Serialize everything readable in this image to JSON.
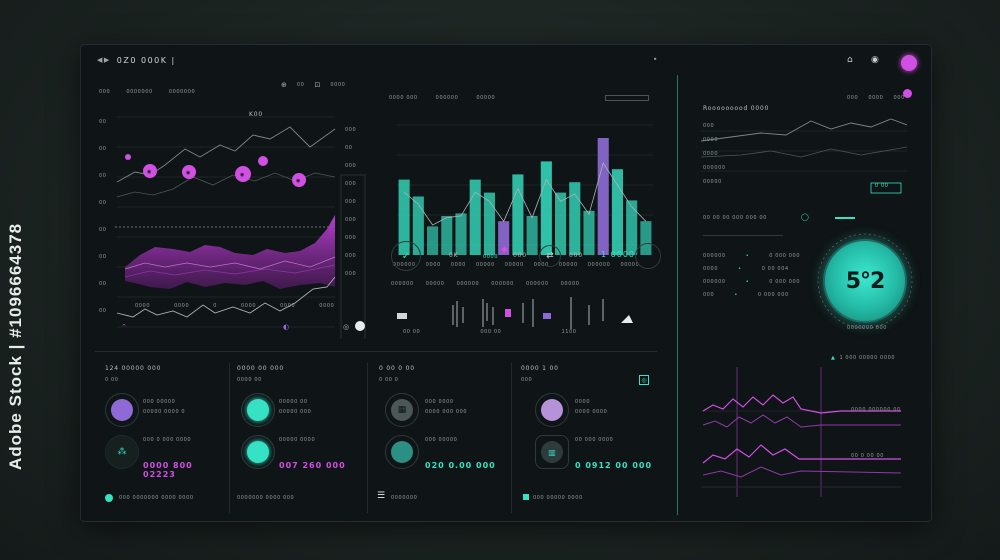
{
  "watermark": {
    "side_text": "Adobe Stock | #1096664378",
    "brand": "Adobe Stock"
  },
  "header": {
    "title": "0Z0 000K |",
    "menu_icon": "ellipsis-icon"
  },
  "left_chart": {
    "tabs": [
      "000",
      "0000000",
      "0000000"
    ],
    "toolbar_labels": [
      "00",
      "0000"
    ],
    "peak_label": "K00",
    "y_ticks": [
      "00",
      "00",
      "00",
      "00",
      "00",
      "00",
      "00",
      "00",
      "00"
    ],
    "right_ticks": [
      "000",
      "00",
      "000",
      "000",
      "000",
      "000",
      "000",
      "000",
      "000"
    ],
    "x_ticks": [
      "0000",
      "0000",
      "0",
      "0000",
      "0000",
      "0000"
    ],
    "magenta_points": 5,
    "footer_icons": [
      "chevron-icon",
      "loader-icon",
      "toggle-icon"
    ]
  },
  "bar_chart": {
    "type": "bar",
    "tabs": [
      "0000 000",
      "000000",
      "00000"
    ],
    "x_ticks": [
      "000000",
      "0000",
      "0000",
      "00000",
      "00000",
      "0000",
      "00000",
      "000000",
      "00000"
    ],
    "values": [
      58,
      45,
      22,
      30,
      32,
      58,
      48,
      26,
      62,
      30,
      72,
      48,
      56,
      34,
      90,
      66,
      42,
      26
    ],
    "accent": "#36e2c4",
    "secondary": "#8f6ad6"
  },
  "mid_controls": {
    "items": [
      "0K",
      "0000",
      "000",
      "000",
      "0000"
    ],
    "value": "1 0000",
    "labels": [
      "000000",
      "00000",
      "000000",
      "000000",
      "000000",
      "00000",
      "00000",
      "00000",
      "00000",
      "0000"
    ],
    "lower_labels": [
      "00 00",
      "000 00",
      "20 00",
      "1100"
    ]
  },
  "right_top": {
    "title": "Rooooooood 0000",
    "icons": [
      "000",
      "0000",
      "000"
    ],
    "rows": [
      "000",
      "0000",
      "0000",
      "000000",
      "00000"
    ],
    "badge": "0 00"
  },
  "gauge": {
    "caption": "00 00 00 000 000 00",
    "value": "5°2",
    "label": "0000000 000",
    "rows": [
      {
        "a": "000000",
        "b": "0 000 000"
      },
      {
        "a": "0000",
        "b": "0 00 004"
      },
      {
        "a": "000000",
        "b": "0 000 000"
      },
      {
        "a": "000",
        "b": "0 000 000"
      }
    ]
  },
  "right_bottom": {
    "title": "1 000 00000 0000",
    "legend": [
      "0000 000000 00",
      "00 0 00 00"
    ]
  },
  "cards": [
    {
      "title": "124 00000 000",
      "sub": "0 00",
      "items": [
        "000 00000",
        "00000 0000 0",
        "000 0 000 0000"
      ],
      "value": "0000 800 02223",
      "footer": "000 0000000 0000 0000",
      "accent": "#8f6ad6"
    },
    {
      "title": "0000 00 000",
      "sub": "0000 00",
      "items": [
        "00000 00",
        "00000 000",
        "00000 0000"
      ],
      "value": "007 260 000",
      "footer": "0000000 0000 000",
      "accent": "#36e2c4"
    },
    {
      "title": "0 00 0 00",
      "sub": "0 00 0",
      "items": [
        "000 0000",
        "0000 000 000",
        "000 00000"
      ],
      "value": "020 0.00 000",
      "footer": "0000000",
      "accent": "#5f6b6e"
    },
    {
      "title": "0000 1 00",
      "sub": "000",
      "items": [
        "0000",
        "0000 0000",
        "00 000 0000"
      ],
      "value": "0 0912 00 000",
      "footer": "000 00000 0000",
      "accent": "#b692d8"
    }
  ]
}
